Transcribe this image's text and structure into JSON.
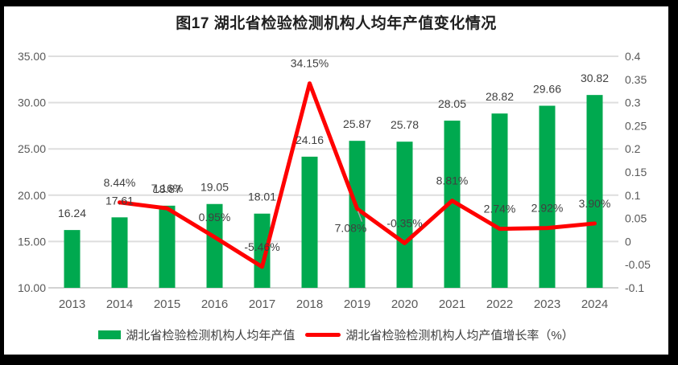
{
  "title": "图17 湖北省检验检测机构人均年产值变化情况",
  "legend": {
    "items": [
      {
        "label": "湖北省检验检测机构人均年产值",
        "swatch": "bar",
        "color": "#00A94F"
      },
      {
        "label": "湖北省检验检测机构人均产值增长率（%）",
        "swatch": "line",
        "color": "#FF0000"
      }
    ]
  },
  "chart_data": {
    "type": "bar+line combo",
    "title": "图17 湖北省检验检测机构人均年产值变化情况",
    "categories": [
      "2013",
      "2014",
      "2015",
      "2016",
      "2017",
      "2018",
      "2019",
      "2020",
      "2021",
      "2022",
      "2023",
      "2024"
    ],
    "series": [
      {
        "name": "湖北省检验检测机构人均年产值",
        "type": "bar",
        "axis": "left",
        "color": "#00A94F",
        "values": [
          16.24,
          17.61,
          18.87,
          19.05,
          18.01,
          24.16,
          25.87,
          25.78,
          28.05,
          28.82,
          29.66,
          30.82
        ],
        "data_labels": [
          "16.24",
          "17.61",
          "18.87",
          "19.05",
          "18.01",
          "24.16",
          "25.87",
          "25.78",
          "28.05",
          "28.82",
          "29.66",
          "30.82"
        ]
      },
      {
        "name": "湖北省检验检测机构人均产值增长率（%）",
        "type": "line",
        "axis": "right",
        "color": "#FF0000",
        "values": [
          null,
          0.0844,
          0.0716,
          0.0095,
          -0.0546,
          0.3415,
          0.0708,
          -0.0035,
          0.0881,
          0.0274,
          0.0292,
          0.039
        ],
        "data_labels": [
          "",
          "8.44%",
          "7.16%",
          "0.95%",
          "-5.46%",
          "34.15%",
          "7.08%",
          "-0.35%",
          "8.81%",
          "2.74%",
          "2.92%",
          "3.90%"
        ],
        "label_overrides": {
          "6": {
            "dx": -8,
            "dy": 49,
            "leader": true
          }
        }
      }
    ],
    "left_axis": {
      "min": 10,
      "max": 35,
      "tick_labels": [
        "35.00",
        "30.00",
        "25.00",
        "20.00",
        "15.00",
        "10.00"
      ]
    },
    "right_axis": {
      "min": -0.1,
      "max": 0.4,
      "tick_labels": [
        "0.4",
        "0.35",
        "0.3",
        "0.25",
        "0.2",
        "0.15",
        "0.1",
        "0.05",
        "0",
        "-0.05",
        "-0.1"
      ]
    },
    "grid": true,
    "gridline_color": "#DEDEDE",
    "baseline_color": "#D2D2D2",
    "leader_color": "#A6A6A6",
    "label_color": "#404040",
    "tick_color": "#595959",
    "legend_position": "bottom"
  }
}
